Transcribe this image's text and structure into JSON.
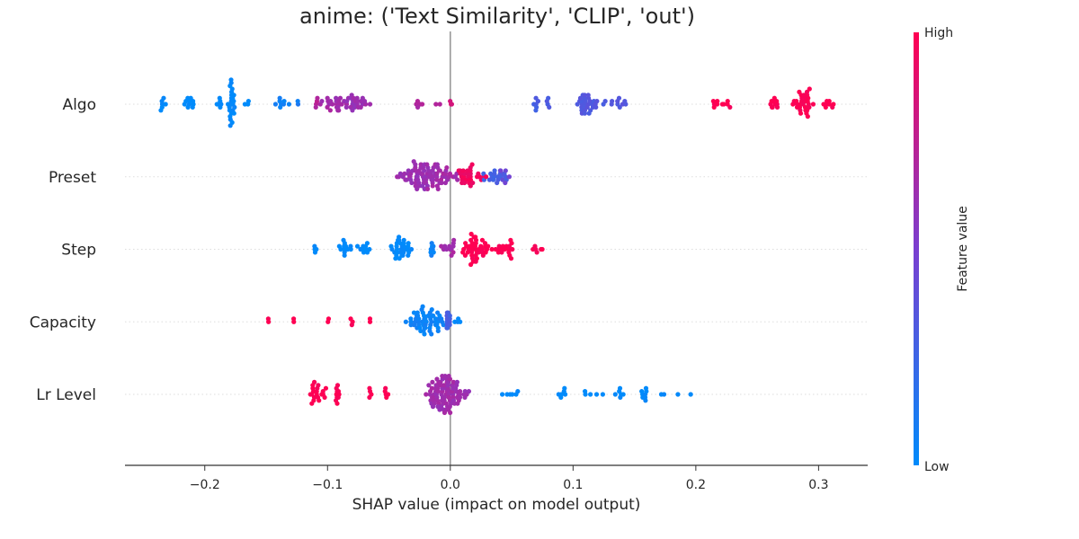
{
  "chart_data": {
    "type": "scatter",
    "subtype": "shap-beeswarm",
    "title": "anime: ('Text Similarity', 'CLIP', 'out')",
    "xlabel": "SHAP value (impact on model output)",
    "xlim": [
      -0.265,
      0.34
    ],
    "xticks": [
      -0.2,
      -0.1,
      0.0,
      0.1,
      0.2,
      0.3
    ],
    "xtick_labels": [
      "−0.2",
      "−0.1",
      "0.0",
      "0.1",
      "0.2",
      "0.3"
    ],
    "zero_line": 0.0,
    "colorbar": {
      "label": "Feature value",
      "high_label": "High",
      "low_label": "Low",
      "low_color": "#008bfb",
      "high_color": "#ff0052"
    },
    "features": [
      {
        "name": "Algo",
        "clusters": [
          {
            "x": -0.235,
            "n": 6,
            "spread": 0.003,
            "v": 0.0
          },
          {
            "x": -0.213,
            "n": 10,
            "spread": 0.004,
            "v": 0.0
          },
          {
            "x": -0.188,
            "n": 6,
            "spread": 0.003,
            "v": 0.0
          },
          {
            "x": -0.178,
            "n": 24,
            "spread": 0.002,
            "v": 0.0
          },
          {
            "x": -0.165,
            "n": 3,
            "spread": 0.003,
            "v": 0.0
          },
          {
            "x": -0.138,
            "n": 8,
            "spread": 0.005,
            "v": 0.05
          },
          {
            "x": -0.125,
            "n": 2,
            "spread": 0.002,
            "v": 0.1
          },
          {
            "x": -0.11,
            "n": 4,
            "spread": 0.003,
            "v": 0.72
          },
          {
            "x": -0.095,
            "n": 22,
            "spread": 0.008,
            "v": 0.65
          },
          {
            "x": -0.075,
            "n": 24,
            "spread": 0.008,
            "v": 0.62
          },
          {
            "x": -0.025,
            "n": 5,
            "spread": 0.002,
            "v": 0.68
          },
          {
            "x": -0.01,
            "n": 2,
            "spread": 0.002,
            "v": 0.72
          },
          {
            "x": 0.0,
            "n": 3,
            "spread": 0.001,
            "v": 0.85
          },
          {
            "x": 0.07,
            "n": 6,
            "spread": 0.002,
            "v": 0.3
          },
          {
            "x": 0.08,
            "n": 4,
            "spread": 0.001,
            "v": 0.3
          },
          {
            "x": 0.11,
            "n": 30,
            "spread": 0.008,
            "v": 0.33
          },
          {
            "x": 0.135,
            "n": 10,
            "spread": 0.006,
            "v": 0.35
          },
          {
            "x": 0.22,
            "n": 10,
            "spread": 0.007,
            "v": 1.0
          },
          {
            "x": 0.265,
            "n": 10,
            "spread": 0.004,
            "v": 1.0
          },
          {
            "x": 0.288,
            "n": 30,
            "spread": 0.005,
            "v": 1.0
          },
          {
            "x": 0.308,
            "n": 8,
            "spread": 0.003,
            "v": 1.0
          }
        ]
      },
      {
        "name": "Preset",
        "clusters": [
          {
            "x": -0.025,
            "n": 60,
            "spread": 0.012,
            "v": 0.62
          },
          {
            "x": -0.005,
            "n": 28,
            "spread": 0.008,
            "v": 0.66
          },
          {
            "x": 0.015,
            "n": 30,
            "spread": 0.009,
            "v": 0.95
          },
          {
            "x": 0.035,
            "n": 18,
            "spread": 0.008,
            "v": 0.28
          },
          {
            "x": 0.045,
            "n": 6,
            "spread": 0.004,
            "v": 0.45
          }
        ]
      },
      {
        "name": "Step",
        "clusters": [
          {
            "x": -0.11,
            "n": 4,
            "spread": 0.001,
            "v": 0.0
          },
          {
            "x": -0.085,
            "n": 12,
            "spread": 0.004,
            "v": 0.0
          },
          {
            "x": -0.07,
            "n": 10,
            "spread": 0.004,
            "v": 0.0
          },
          {
            "x": -0.04,
            "n": 30,
            "spread": 0.006,
            "v": 0.0
          },
          {
            "x": -0.015,
            "n": 8,
            "spread": 0.002,
            "v": 0.05
          },
          {
            "x": 0.0,
            "n": 12,
            "spread": 0.006,
            "v": 0.66
          },
          {
            "x": 0.02,
            "n": 40,
            "spread": 0.008,
            "v": 1.0
          },
          {
            "x": 0.045,
            "n": 18,
            "spread": 0.008,
            "v": 1.0
          },
          {
            "x": 0.07,
            "n": 6,
            "spread": 0.006,
            "v": 1.0
          }
        ]
      },
      {
        "name": "Capacity",
        "clusters": [
          {
            "x": -0.148,
            "n": 2,
            "spread": 0.001,
            "v": 1.0
          },
          {
            "x": -0.128,
            "n": 2,
            "spread": 0.001,
            "v": 1.0
          },
          {
            "x": -0.1,
            "n": 2,
            "spread": 0.001,
            "v": 1.0
          },
          {
            "x": -0.08,
            "n": 3,
            "spread": 0.001,
            "v": 1.0
          },
          {
            "x": -0.065,
            "n": 2,
            "spread": 0.001,
            "v": 1.0
          },
          {
            "x": -0.02,
            "n": 55,
            "spread": 0.01,
            "v": 0.05
          },
          {
            "x": -0.002,
            "n": 12,
            "spread": 0.002,
            "v": 0.3
          },
          {
            "x": 0.005,
            "n": 4,
            "spread": 0.003,
            "v": 0.0
          }
        ]
      },
      {
        "name": "Lr Level",
        "clusters": [
          {
            "x": -0.11,
            "n": 20,
            "spread": 0.006,
            "v": 1.0
          },
          {
            "x": -0.093,
            "n": 10,
            "spread": 0.002,
            "v": 1.0
          },
          {
            "x": -0.065,
            "n": 4,
            "spread": 0.001,
            "v": 1.0
          },
          {
            "x": -0.053,
            "n": 5,
            "spread": 0.002,
            "v": 1.0
          },
          {
            "x": -0.005,
            "n": 90,
            "spread": 0.012,
            "v": 0.64
          },
          {
            "x": 0.048,
            "n": 6,
            "spread": 0.005,
            "v": 0.0
          },
          {
            "x": 0.09,
            "n": 6,
            "spread": 0.01,
            "v": 0.0
          },
          {
            "x": 0.115,
            "n": 5,
            "spread": 0.008,
            "v": 0.0
          },
          {
            "x": 0.138,
            "n": 6,
            "spread": 0.004,
            "v": 0.0
          },
          {
            "x": 0.158,
            "n": 8,
            "spread": 0.002,
            "v": 0.0
          },
          {
            "x": 0.183,
            "n": 4,
            "spread": 0.01,
            "v": 0.0
          }
        ]
      }
    ]
  }
}
